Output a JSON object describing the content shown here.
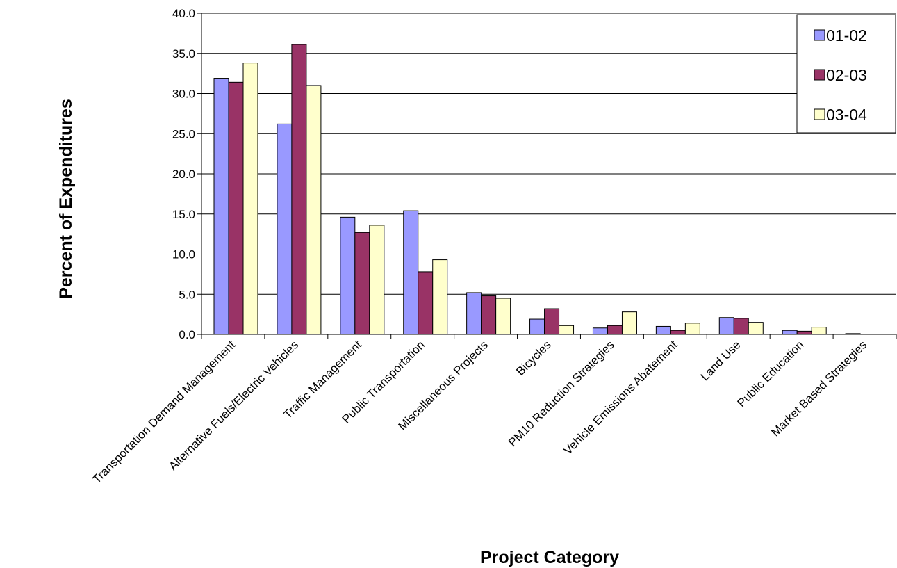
{
  "chart_data": {
    "type": "bar",
    "title": "",
    "xlabel": "Project Category",
    "ylabel": "Percent of Expenditures",
    "ylim": [
      0,
      40
    ],
    "ytick_step": 5,
    "ytick_labels": [
      "0.0",
      "5.0",
      "10.0",
      "15.0",
      "20.0",
      "25.0",
      "30.0",
      "35.0",
      "40.0"
    ],
    "grid": true,
    "legend_position": "top-right",
    "categories": [
      "Transportation Demand Management",
      "Alternative Fuels/Electric Vehicles",
      "Traffic Management",
      "Public Transportation",
      "Miscellaneous Projects",
      "Bicycles",
      "PM10 Reduction Strategies",
      "Vehicle Emissions Abatement",
      "Land Use",
      "Public Education",
      "Market Based Strategies"
    ],
    "series": [
      {
        "name": "01-02",
        "color": "#9999ff",
        "values": [
          31.9,
          26.2,
          14.6,
          15.4,
          5.2,
          1.9,
          0.8,
          1.0,
          2.1,
          0.5,
          0.1
        ]
      },
      {
        "name": "02-03",
        "color": "#993366",
        "values": [
          31.4,
          36.1,
          12.7,
          7.8,
          4.8,
          3.2,
          1.1,
          0.5,
          2.0,
          0.4,
          0.0
        ]
      },
      {
        "name": "03-04",
        "color": "#ffffcc",
        "values": [
          33.8,
          31.0,
          13.6,
          9.3,
          4.5,
          1.1,
          2.8,
          1.4,
          1.5,
          0.9,
          0.0
        ]
      }
    ]
  }
}
